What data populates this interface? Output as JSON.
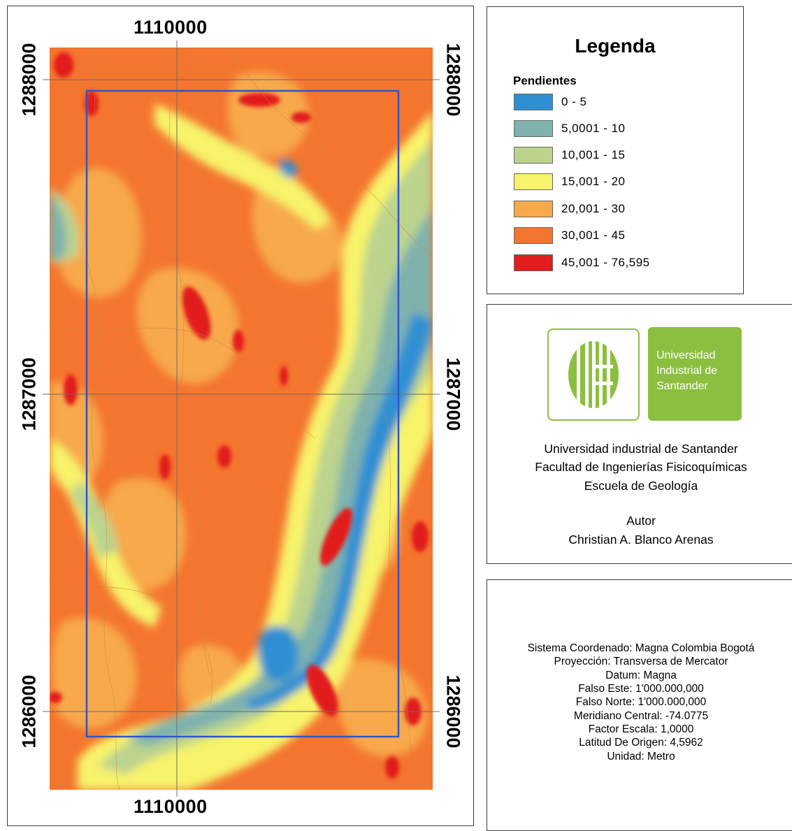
{
  "map": {
    "x_label_top": "1110000",
    "x_label_bottom": "1110000",
    "y_labels": [
      "1288000",
      "1287000",
      "1286000"
    ],
    "colors": {
      "grid": "#6b6b6b",
      "study_area_outline": "#2f55c8",
      "contour": "#c8873a"
    }
  },
  "legend": {
    "title": "Legenda",
    "subtitle": "Pendientes",
    "items": [
      {
        "label": "0 - 5",
        "color": "#2f8fd3"
      },
      {
        "label": "5,0001 - 10",
        "color": "#7fb2ad"
      },
      {
        "label": "10,001 - 15",
        "color": "#bcd38e"
      },
      {
        "label": "15,001 - 20",
        "color": "#f7f36a"
      },
      {
        "label": "20,001 - 30",
        "color": "#f7a94b"
      },
      {
        "label": "30,001 - 45",
        "color": "#f4752e"
      },
      {
        "label": "45,001 - 76,595",
        "color": "#e21d1d"
      }
    ]
  },
  "institution": {
    "logo_text": [
      "Universidad",
      "Industrial de",
      "Santander"
    ],
    "logo_color": "#8cbf3f",
    "lines": [
      "Universidad industrial de Santander",
      "Facultad de Ingenierías Fisicoquímicas",
      "Escuela de Geología"
    ],
    "author_label": "Autor",
    "author_name": "Christian A. Blanco Arenas"
  },
  "coordinate_system": [
    "Sistema Coordenado: Magna Colombia Bogotá",
    "Proyección: Transversa de Mercator",
    "Datum: Magna",
    "Falso Este: 1'000.000,000",
    "Falso Norte: 1'000.000,000",
    "Meridiano Central: -74.0775",
    "Factor Escala: 1,0000",
    "Latitud De Origen: 4,5962",
    "Unidad: Metro"
  ]
}
